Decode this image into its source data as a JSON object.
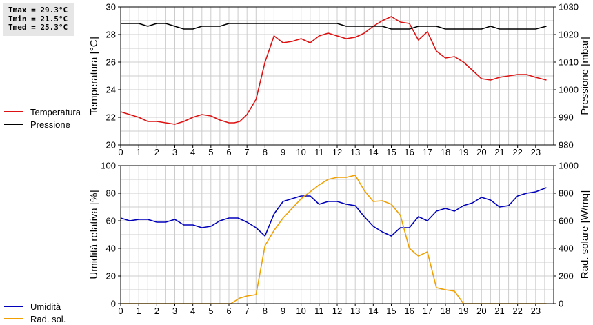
{
  "stats": {
    "tmax": "Tmax = 29.3°C",
    "tmin": "Tmin = 21.5°C",
    "tmed": "Tmed = 25.3°C"
  },
  "colors": {
    "temperatura": "#dd1111",
    "pressione": "#000000",
    "umidita": "#0000bb",
    "radiazione": "#f0a000",
    "grid": "#cccccc"
  },
  "legends": {
    "top": [
      {
        "label": "Temperatura",
        "color_key": "temperatura"
      },
      {
        "label": "Pressione",
        "color_key": "pressione"
      }
    ],
    "bottom": [
      {
        "label": "Umidità",
        "color_key": "umidita"
      },
      {
        "label": "Rad. sol.",
        "color_key": "radiazione"
      }
    ]
  },
  "chart_data": [
    {
      "type": "line",
      "xlim": [
        0,
        24
      ],
      "x_ticks": [
        0,
        1,
        2,
        3,
        4,
        5,
        6,
        7,
        8,
        9,
        10,
        11,
        12,
        13,
        14,
        15,
        16,
        17,
        18,
        19,
        20,
        21,
        22,
        23
      ],
      "y_left": {
        "label": "Temperatura [°C]",
        "lim": [
          20,
          30
        ],
        "ticks": [
          20,
          22,
          24,
          26,
          28,
          30
        ]
      },
      "y_right": {
        "label": "Pressione [mbar]",
        "lim": [
          980,
          1030
        ],
        "ticks": [
          980,
          990,
          1000,
          1010,
          1020,
          1030
        ]
      },
      "grid": true,
      "series": [
        {
          "name": "Temperatura",
          "axis": "left",
          "color_key": "temperatura",
          "x": [
            0,
            0.5,
            1,
            1.5,
            2,
            2.5,
            3,
            3.5,
            4,
            4.5,
            5,
            5.5,
            6,
            6.3,
            6.6,
            7,
            7.5,
            8,
            8.5,
            9,
            9.5,
            10,
            10.5,
            11,
            11.5,
            12,
            12.5,
            13,
            13.5,
            14,
            14.5,
            15,
            15.5,
            16,
            16.5,
            17,
            17.5,
            18,
            18.5,
            19,
            19.5,
            20,
            20.5,
            21,
            21.5,
            22,
            22.5,
            23,
            23.6
          ],
          "y": [
            22.4,
            22.2,
            22.0,
            21.7,
            21.7,
            21.6,
            21.5,
            21.7,
            22.0,
            22.2,
            22.1,
            21.8,
            21.6,
            21.6,
            21.7,
            22.2,
            23.3,
            26.0,
            27.9,
            27.4,
            27.5,
            27.7,
            27.4,
            27.9,
            28.1,
            27.9,
            27.7,
            27.8,
            28.1,
            28.6,
            29.0,
            29.3,
            28.9,
            28.8,
            27.6,
            28.2,
            26.8,
            26.3,
            26.4,
            26.0,
            25.4,
            24.8,
            24.7,
            24.9,
            25.0,
            25.1,
            25.1,
            24.9,
            24.7
          ]
        },
        {
          "name": "Pressione",
          "axis": "right",
          "color_key": "pressione",
          "x": [
            0,
            1,
            1.5,
            2,
            2.5,
            3,
            3.5,
            4,
            4.5,
            5,
            5.5,
            6,
            6.5,
            7,
            7.5,
            8,
            8.5,
            9,
            9.5,
            10,
            10.5,
            11,
            11.5,
            12,
            12.5,
            13,
            13.5,
            14,
            14.5,
            15,
            15.5,
            16,
            16.5,
            17,
            17.5,
            18,
            18.5,
            19,
            19.5,
            20,
            20.5,
            21,
            21.5,
            22,
            22.5,
            23,
            23.6
          ],
          "y": [
            1024,
            1024,
            1023,
            1024,
            1024,
            1023,
            1022,
            1022,
            1023,
            1023,
            1023,
            1024,
            1024,
            1024,
            1024,
            1024,
            1024,
            1024,
            1024,
            1024,
            1024,
            1024,
            1024,
            1024,
            1023,
            1023,
            1023,
            1023,
            1023,
            1022,
            1022,
            1022,
            1023,
            1023,
            1023,
            1022,
            1022,
            1022,
            1022,
            1022,
            1023,
            1022,
            1022,
            1022,
            1022,
            1022,
            1023
          ]
        }
      ]
    },
    {
      "type": "line",
      "xlim": [
        0,
        24
      ],
      "x_ticks": [
        0,
        1,
        2,
        3,
        4,
        5,
        6,
        7,
        8,
        9,
        10,
        11,
        12,
        13,
        14,
        15,
        16,
        17,
        18,
        19,
        20,
        21,
        22,
        23
      ],
      "y_left": {
        "label": "Umidità relativa [%]",
        "lim": [
          0,
          100
        ],
        "ticks": [
          0,
          20,
          40,
          60,
          80,
          100
        ]
      },
      "y_right": {
        "label": "Rad. solare [W/mq]",
        "lim": [
          0,
          1000
        ],
        "ticks": [
          0,
          200,
          400,
          600,
          800,
          1000
        ]
      },
      "grid": true,
      "series": [
        {
          "name": "Umidità",
          "axis": "left",
          "color_key": "umidita",
          "x": [
            0,
            0.5,
            1,
            1.5,
            2,
            2.5,
            3,
            3.5,
            4,
            4.5,
            5,
            5.5,
            6,
            6.5,
            7,
            7.5,
            8,
            8.5,
            9,
            9.5,
            10,
            10.5,
            11,
            11.5,
            12,
            12.5,
            13,
            13.5,
            14,
            14.5,
            15,
            15.5,
            16,
            16.5,
            17,
            17.5,
            18,
            18.5,
            19,
            19.5,
            20,
            20.5,
            21,
            21.5,
            22,
            22.5,
            23,
            23.6
          ],
          "y": [
            62,
            60,
            61,
            61,
            59,
            59,
            61,
            57,
            57,
            55,
            56,
            60,
            62,
            62,
            59,
            55,
            49,
            65,
            74,
            76,
            78,
            78,
            72,
            74,
            74,
            72,
            71,
            63,
            56,
            52,
            49,
            55,
            55,
            63,
            60,
            67,
            69,
            67,
            71,
            73,
            77,
            75,
            70,
            71,
            78,
            80,
            81,
            84
          ]
        },
        {
          "name": "Rad. sol.",
          "axis": "right",
          "color_key": "radiazione",
          "x": [
            0,
            1,
            2,
            3,
            4,
            5,
            6.1,
            6.6,
            7,
            7.5,
            8,
            8.5,
            9,
            9.5,
            10,
            10.5,
            11,
            11.5,
            12,
            12.5,
            13,
            13.5,
            14,
            14.5,
            15,
            15.5,
            16,
            16.5,
            17,
            17.5,
            18,
            18.5,
            19,
            19.5,
            20,
            21,
            22,
            23,
            23.6
          ],
          "y": [
            0,
            0,
            0,
            0,
            0,
            0,
            0,
            40,
            55,
            65,
            420,
            530,
            620,
            690,
            760,
            810,
            860,
            900,
            915,
            915,
            930,
            820,
            740,
            745,
            720,
            640,
            400,
            345,
            375,
            115,
            100,
            90,
            0,
            0,
            0,
            0,
            0,
            0,
            0
          ]
        }
      ]
    }
  ]
}
